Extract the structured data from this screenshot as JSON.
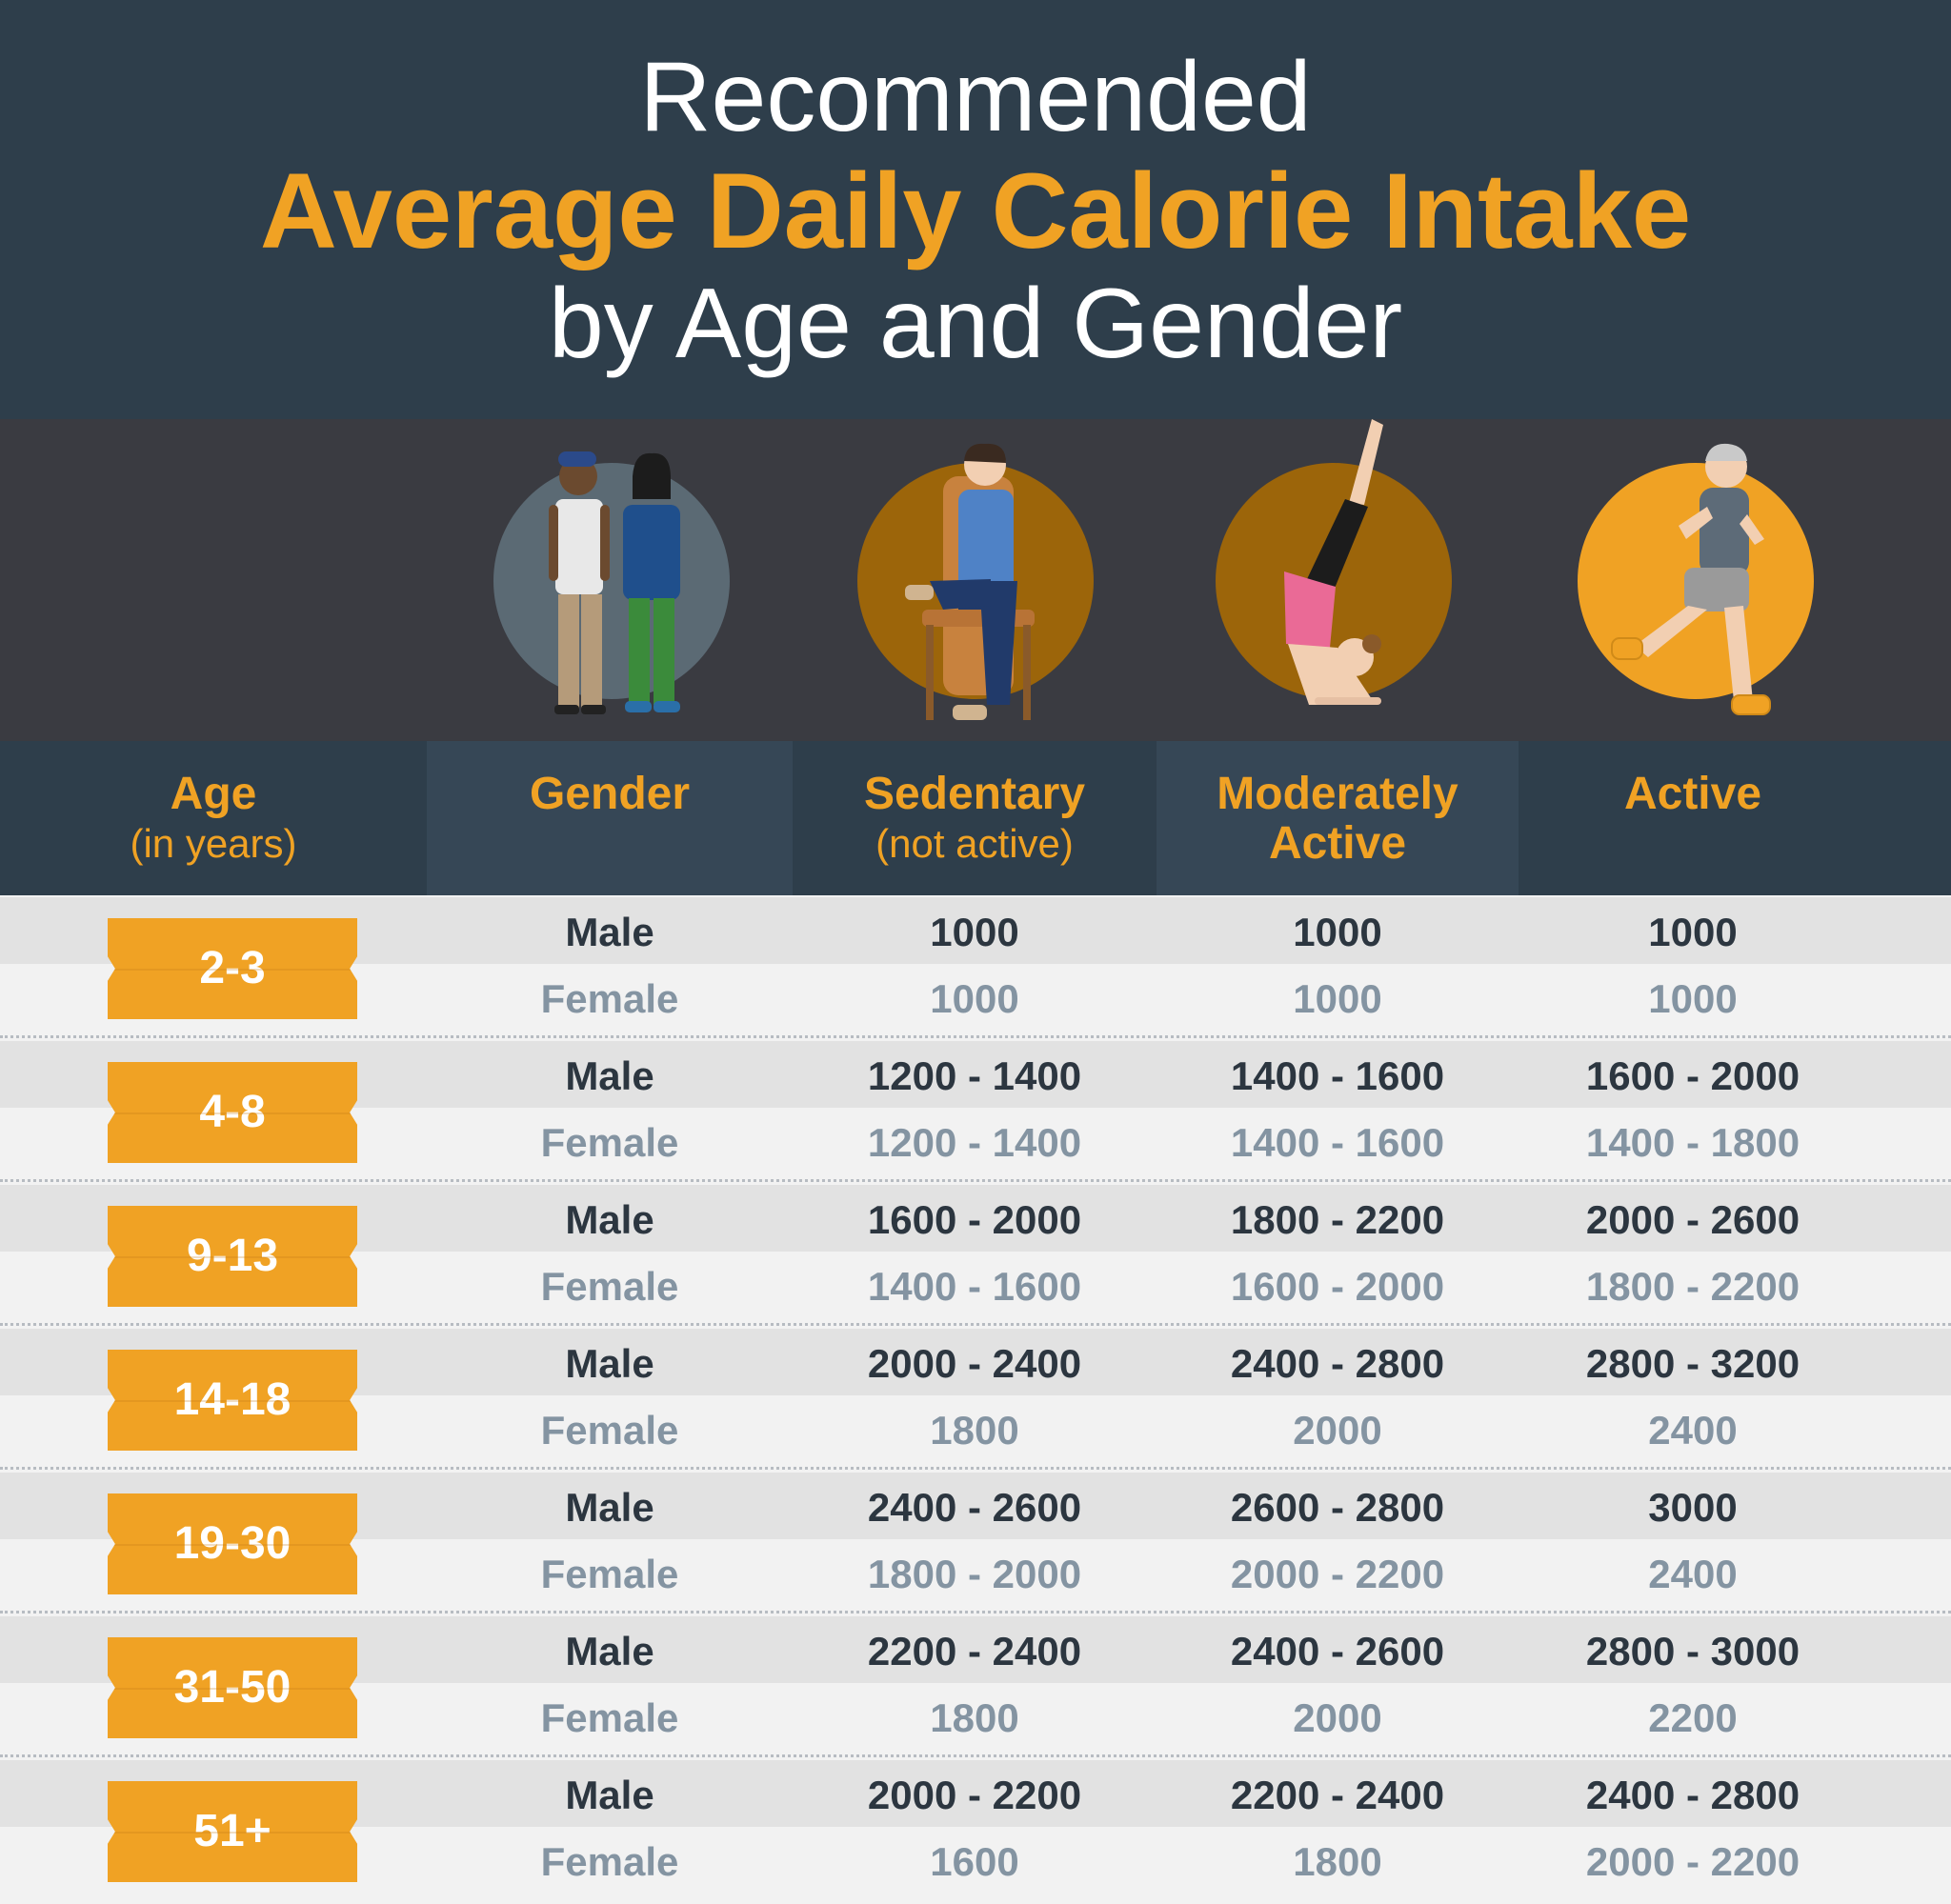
{
  "title": {
    "line1": "Recommended",
    "line2": "Average Daily Calorie Intake",
    "line3": "by Age and Gender"
  },
  "columns": {
    "age": {
      "main": "Age",
      "sub": "(in years)"
    },
    "gender": {
      "main": "Gender"
    },
    "sedentary": {
      "main": "Sedentary",
      "sub": "(not active)"
    },
    "moderate": {
      "line1": "Moderately",
      "line2": "Active"
    },
    "active": {
      "main": "Active"
    }
  },
  "illustrations": [
    "people-icon",
    "sitting-man-icon",
    "yoga-woman-icon",
    "running-man-icon"
  ],
  "colors": {
    "accent": "#f0a224",
    "header_bg": "#2e3e4b",
    "illus_bg": "#3a3b41"
  },
  "rows": [
    {
      "age": "2-3",
      "male": {
        "gender": "Male",
        "sedentary": "1000",
        "moderate": "1000",
        "active": "1000"
      },
      "female": {
        "gender": "Female",
        "sedentary": "1000",
        "moderate": "1000",
        "active": "1000"
      }
    },
    {
      "age": "4-8",
      "male": {
        "gender": "Male",
        "sedentary": "1200 - 1400",
        "moderate": "1400 - 1600",
        "active": "1600 - 2000"
      },
      "female": {
        "gender": "Female",
        "sedentary": "1200 - 1400",
        "moderate": "1400 - 1600",
        "active": "1400 - 1800"
      }
    },
    {
      "age": "9-13",
      "male": {
        "gender": "Male",
        "sedentary": "1600 - 2000",
        "moderate": "1800 - 2200",
        "active": "2000 - 2600"
      },
      "female": {
        "gender": "Female",
        "sedentary": "1400 - 1600",
        "moderate": "1600 - 2000",
        "active": "1800 - 2200"
      }
    },
    {
      "age": "14-18",
      "male": {
        "gender": "Male",
        "sedentary": "2000 - 2400",
        "moderate": "2400 - 2800",
        "active": "2800 - 3200"
      },
      "female": {
        "gender": "Female",
        "sedentary": "1800",
        "moderate": "2000",
        "active": "2400"
      }
    },
    {
      "age": "19-30",
      "male": {
        "gender": "Male",
        "sedentary": "2400 - 2600",
        "moderate": "2600 - 2800",
        "active": "3000"
      },
      "female": {
        "gender": "Female",
        "sedentary": "1800 - 2000",
        "moderate": "2000 - 2200",
        "active": "2400"
      }
    },
    {
      "age": "31-50",
      "male": {
        "gender": "Male",
        "sedentary": "2200 - 2400",
        "moderate": "2400 - 2600",
        "active": "2800 - 3000"
      },
      "female": {
        "gender": "Female",
        "sedentary": "1800",
        "moderate": "2000",
        "active": "2200"
      }
    },
    {
      "age": "51+",
      "male": {
        "gender": "Male",
        "sedentary": "2000 - 2200",
        "moderate": "2200 - 2400",
        "active": "2400 - 2800"
      },
      "female": {
        "gender": "Female",
        "sedentary": "1600",
        "moderate": "1800",
        "active": "2000 - 2200"
      }
    }
  ]
}
